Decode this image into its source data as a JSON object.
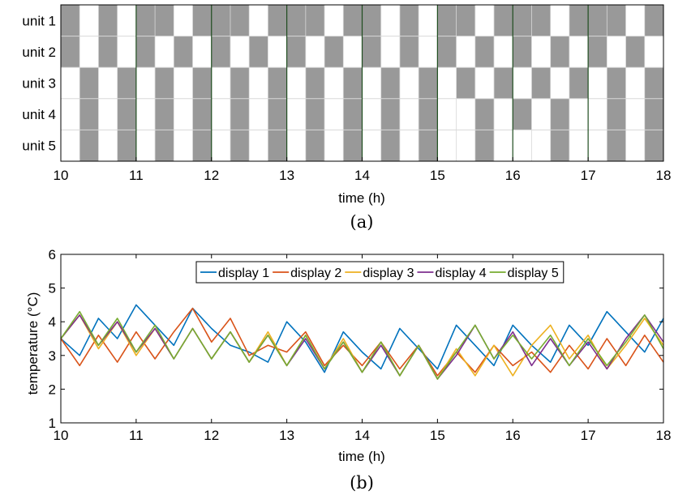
{
  "chart_data": [
    {
      "type": "heatmap",
      "caption": "(a)",
      "xlabel": "time (h)",
      "ylabel": "",
      "xlim": [
        10,
        18
      ],
      "xticks": [
        10,
        11,
        12,
        13,
        14,
        15,
        16,
        17,
        18
      ],
      "rows": [
        "unit 1",
        "unit 2",
        "unit 3",
        "unit 4",
        "unit 5"
      ],
      "slot_hours": 0.25,
      "on_color": "#999999",
      "off_color": "#ffffff",
      "states": [
        [
          1,
          0,
          1,
          0,
          1,
          1,
          0,
          1,
          1,
          1,
          0,
          1,
          1,
          1,
          0,
          1,
          1,
          0,
          1,
          0,
          1,
          1,
          0,
          1,
          1,
          1,
          0,
          1,
          1,
          1,
          0,
          1
        ],
        [
          1,
          0,
          1,
          0,
          1,
          0,
          1,
          0,
          1,
          0,
          1,
          0,
          1,
          0,
          1,
          0,
          1,
          0,
          1,
          0,
          1,
          0,
          1,
          0,
          1,
          0,
          1,
          0,
          1,
          0,
          1,
          0
        ],
        [
          0,
          1,
          0,
          1,
          0,
          1,
          0,
          1,
          0,
          1,
          0,
          1,
          0,
          1,
          0,
          1,
          0,
          1,
          0,
          1,
          0,
          1,
          0,
          1,
          0,
          1,
          0,
          1,
          0,
          1,
          0,
          1
        ],
        [
          0,
          1,
          0,
          1,
          0,
          1,
          0,
          1,
          0,
          1,
          0,
          1,
          0,
          1,
          0,
          1,
          0,
          1,
          0,
          1,
          0,
          0,
          1,
          0,
          1,
          0,
          1,
          0,
          0,
          1,
          0,
          1
        ],
        [
          0,
          1,
          0,
          1,
          0,
          1,
          0,
          1,
          0,
          1,
          0,
          1,
          0,
          1,
          0,
          1,
          0,
          1,
          0,
          1,
          0,
          0,
          1,
          0,
          0,
          0,
          1,
          0,
          0,
          1,
          0,
          1
        ]
      ]
    },
    {
      "type": "line",
      "caption": "(b)",
      "xlabel": "time (h)",
      "ylabel": "temperature (°C)",
      "xlim": [
        10,
        18
      ],
      "ylim": [
        1,
        6
      ],
      "xticks": [
        10,
        11,
        12,
        13,
        14,
        15,
        16,
        17,
        18
      ],
      "yticks": [
        1,
        2,
        3,
        4,
        5,
        6
      ],
      "legend_position": "top-right",
      "x": [
        10,
        10.25,
        10.5,
        10.75,
        11,
        11.25,
        11.5,
        11.75,
        12,
        12.25,
        12.5,
        12.75,
        13,
        13.25,
        13.5,
        13.75,
        14,
        14.25,
        14.5,
        14.75,
        15,
        15.25,
        15.5,
        15.75,
        16,
        16.25,
        16.5,
        16.75,
        17,
        17.25,
        17.5,
        17.75,
        18
      ],
      "series": [
        {
          "name": "display 1",
          "color": "#0072BD",
          "values": [
            3.5,
            3.0,
            4.1,
            3.5,
            4.5,
            3.9,
            3.3,
            4.4,
            3.8,
            3.3,
            3.1,
            2.8,
            4.0,
            3.4,
            2.5,
            3.7,
            3.1,
            2.6,
            3.8,
            3.2,
            2.6,
            3.9,
            3.3,
            2.7,
            3.9,
            3.3,
            2.8,
            3.9,
            3.3,
            4.3,
            3.7,
            3.1,
            4.1
          ]
        },
        {
          "name": "display 2",
          "color": "#D95319",
          "values": [
            3.5,
            2.7,
            3.6,
            2.8,
            3.7,
            2.9,
            3.7,
            4.4,
            3.4,
            4.1,
            3.0,
            3.3,
            3.1,
            3.7,
            2.7,
            3.3,
            2.7,
            3.4,
            2.6,
            3.3,
            2.4,
            3.1,
            2.5,
            3.3,
            2.7,
            3.1,
            2.5,
            3.3,
            2.6,
            3.5,
            2.7,
            3.6,
            2.8
          ]
        },
        {
          "name": "display 3",
          "color": "#EDB120",
          "values": [
            3.5,
            4.2,
            3.2,
            4.0,
            3.0,
            3.8,
            2.9,
            3.8,
            2.9,
            3.7,
            2.8,
            3.7,
            2.7,
            3.6,
            2.6,
            3.5,
            2.5,
            3.4,
            2.4,
            3.3,
            2.3,
            3.2,
            2.4,
            3.3,
            2.4,
            3.3,
            3.9,
            2.9,
            3.6,
            2.6,
            3.3,
            4.1,
            3.3
          ]
        },
        {
          "name": "display 4",
          "color": "#7E2F8E",
          "values": [
            3.5,
            4.2,
            3.3,
            4.0,
            3.1,
            3.8,
            2.9,
            3.8,
            2.9,
            3.7,
            2.8,
            3.6,
            2.7,
            3.5,
            2.6,
            3.4,
            2.5,
            3.3,
            2.4,
            3.3,
            2.3,
            3.0,
            3.9,
            2.9,
            3.7,
            2.7,
            3.5,
            2.7,
            3.4,
            2.6,
            3.5,
            4.2,
            3.4
          ]
        },
        {
          "name": "display 5",
          "color": "#77AC30",
          "values": [
            3.5,
            4.3,
            3.3,
            4.1,
            3.1,
            3.9,
            2.9,
            3.8,
            2.9,
            3.7,
            2.8,
            3.6,
            2.7,
            3.6,
            2.6,
            3.4,
            2.5,
            3.4,
            2.4,
            3.3,
            2.3,
            3.1,
            3.9,
            2.9,
            3.6,
            2.9,
            3.6,
            2.7,
            3.5,
            2.7,
            3.4,
            4.2,
            3.2
          ]
        }
      ]
    }
  ]
}
